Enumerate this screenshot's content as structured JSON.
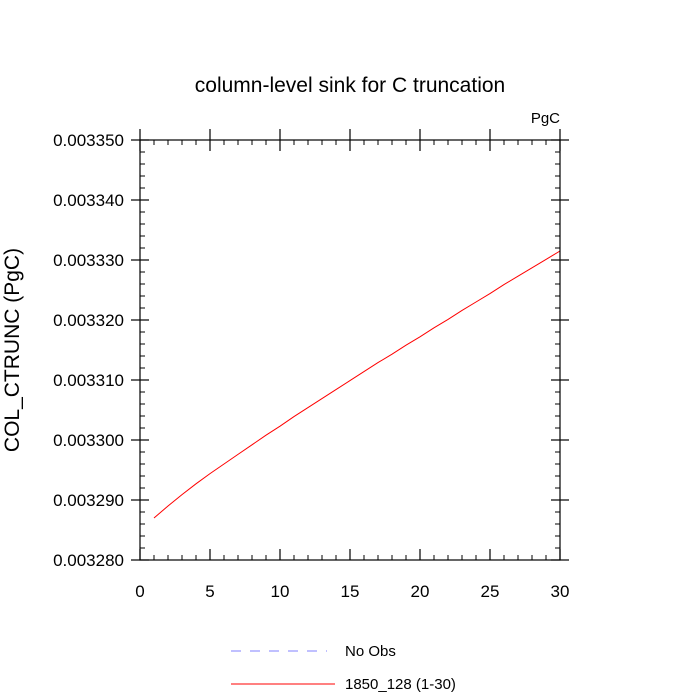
{
  "chart_data": {
    "type": "line",
    "title": "column-level sink for C truncation",
    "ylabel": "COL_CTRUNC  (PgC)",
    "xlabel": "",
    "units_label": "PgC",
    "xlim": [
      0,
      30
    ],
    "ylim": [
      0.00328,
      0.00335
    ],
    "x_ticks": [
      0,
      5,
      10,
      15,
      20,
      25,
      30
    ],
    "x_tick_labels": [
      "0",
      "5",
      "10",
      "15",
      "20",
      "25",
      "30"
    ],
    "y_ticks": [
      0.00328,
      0.00329,
      0.0033,
      0.00331,
      0.00332,
      0.00333,
      0.00334,
      0.00335
    ],
    "y_tick_labels": [
      "0.003280",
      "0.003290",
      "0.003300",
      "0.003310",
      "0.003320",
      "0.003330",
      "0.003340",
      "0.003350"
    ],
    "grid": false,
    "legend_position": "bottom-center",
    "series": [
      {
        "name": "No Obs",
        "color": "#8080ff",
        "dash": "dashed",
        "x": [],
        "y": []
      },
      {
        "name": "1850_128 (1-30)",
        "color": "#ff0000",
        "dash": "solid",
        "x": [
          1,
          2,
          3,
          4,
          5,
          6,
          7,
          8,
          9,
          10,
          11,
          12,
          13,
          14,
          15,
          16,
          17,
          18,
          19,
          20,
          21,
          22,
          23,
          24,
          25,
          26,
          27,
          28,
          29,
          30
        ],
        "y": [
          0.003287,
          0.003289,
          0.0032909,
          0.0032927,
          0.0032944,
          0.003296,
          0.0032976,
          0.0032992,
          0.0033008,
          0.0033023,
          0.0033039,
          0.0033054,
          0.0033069,
          0.0033084,
          0.0033099,
          0.0033114,
          0.0033129,
          0.0033143,
          0.0033158,
          0.0033172,
          0.0033187,
          0.0033201,
          0.0033216,
          0.003323,
          0.0033244,
          0.0033259,
          0.0033273,
          0.0033287,
          0.0033301,
          0.0033315
        ]
      }
    ]
  }
}
